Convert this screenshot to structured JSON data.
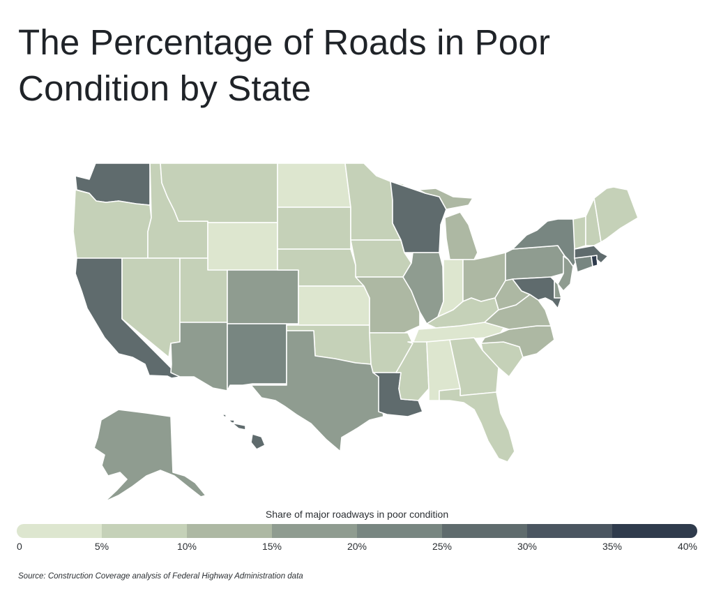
{
  "title": "The Percentage of Roads in Poor Condition by State",
  "legend": {
    "title": "Share of major roadways in poor condition",
    "ticks": [
      "0",
      "5%",
      "10%",
      "15%",
      "20%",
      "25%",
      "30%",
      "35%",
      "40%"
    ],
    "bins": [
      {
        "min": 0,
        "max": 5,
        "color": "#dde6cf"
      },
      {
        "min": 5,
        "max": 10,
        "color": "#c5d1b8"
      },
      {
        "min": 10,
        "max": 15,
        "color": "#adb8a3"
      },
      {
        "min": 15,
        "max": 20,
        "color": "#8f9c90"
      },
      {
        "min": 20,
        "max": 25,
        "color": "#788681"
      },
      {
        "min": 25,
        "max": 30,
        "color": "#5f6b6d"
      },
      {
        "min": 30,
        "max": 35,
        "color": "#4a5560"
      },
      {
        "min": 35,
        "max": 40,
        "color": "#2f3b4c"
      }
    ]
  },
  "states": [
    {
      "id": "WA",
      "bin": 5
    },
    {
      "id": "OR",
      "bin": 1
    },
    {
      "id": "CA",
      "bin": 5
    },
    {
      "id": "ID",
      "bin": 1
    },
    {
      "id": "NV",
      "bin": 1
    },
    {
      "id": "MT",
      "bin": 1
    },
    {
      "id": "WY",
      "bin": 0
    },
    {
      "id": "UT",
      "bin": 1
    },
    {
      "id": "AZ",
      "bin": 3
    },
    {
      "id": "CO",
      "bin": 3
    },
    {
      "id": "NM",
      "bin": 4
    },
    {
      "id": "ND",
      "bin": 0
    },
    {
      "id": "SD",
      "bin": 1
    },
    {
      "id": "NE",
      "bin": 1
    },
    {
      "id": "KS",
      "bin": 0
    },
    {
      "id": "OK",
      "bin": 1
    },
    {
      "id": "TX",
      "bin": 3
    },
    {
      "id": "MN",
      "bin": 1
    },
    {
      "id": "IA",
      "bin": 1
    },
    {
      "id": "MO",
      "bin": 2
    },
    {
      "id": "AR",
      "bin": 1
    },
    {
      "id": "LA",
      "bin": 5
    },
    {
      "id": "WI",
      "bin": 5
    },
    {
      "id": "IL",
      "bin": 3
    },
    {
      "id": "MI",
      "bin": 2
    },
    {
      "id": "IN",
      "bin": 0
    },
    {
      "id": "OH",
      "bin": 2
    },
    {
      "id": "KY",
      "bin": 1
    },
    {
      "id": "TN",
      "bin": 0
    },
    {
      "id": "MS",
      "bin": 1
    },
    {
      "id": "AL",
      "bin": 0
    },
    {
      "id": "GA",
      "bin": 1
    },
    {
      "id": "FL",
      "bin": 1
    },
    {
      "id": "SC",
      "bin": 1
    },
    {
      "id": "NC",
      "bin": 2
    },
    {
      "id": "VA",
      "bin": 2
    },
    {
      "id": "WV",
      "bin": 2
    },
    {
      "id": "PA",
      "bin": 3
    },
    {
      "id": "NY",
      "bin": 4
    },
    {
      "id": "VT",
      "bin": 1
    },
    {
      "id": "NH",
      "bin": 1
    },
    {
      "id": "ME",
      "bin": 1
    },
    {
      "id": "MA",
      "bin": 5
    },
    {
      "id": "RI",
      "bin": 7
    },
    {
      "id": "CT",
      "bin": 4
    },
    {
      "id": "NJ",
      "bin": 3
    },
    {
      "id": "DE",
      "bin": 3
    },
    {
      "id": "MD",
      "bin": 5
    },
    {
      "id": "AK",
      "bin": 3
    },
    {
      "id": "HI",
      "bin": 5
    }
  ],
  "source": "Source: Construction Coverage analysis of Federal Highway Administration data"
}
